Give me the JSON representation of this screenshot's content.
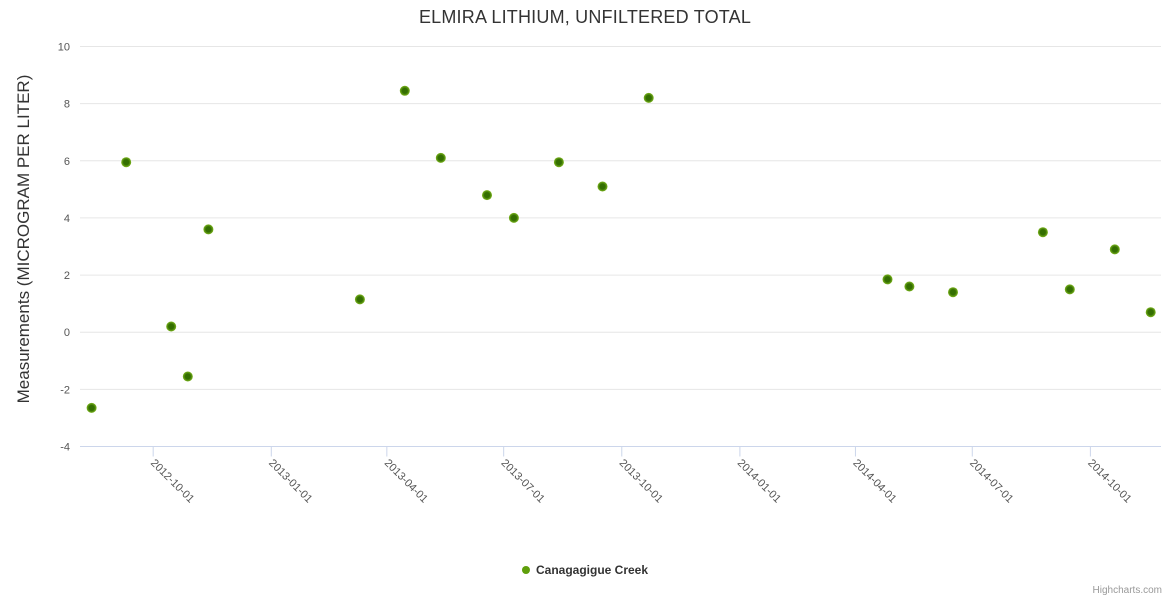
{
  "chart_data": {
    "type": "scatter",
    "title": "ELMIRA LITHIUM, UNFILTERED TOTAL",
    "xlabel": "",
    "ylabel": "Measurements (MICROGRAM PER LITER)",
    "x_type": "datetime",
    "x_range": [
      "2012-08-05",
      "2014-11-25"
    ],
    "ylim": [
      -4,
      10
    ],
    "yticks": [
      10,
      8,
      6,
      4,
      2,
      0,
      -2,
      -4
    ],
    "xticks": [
      "2012-10-01",
      "2013-01-01",
      "2013-04-01",
      "2013-07-01",
      "2013-10-01",
      "2014-01-01",
      "2014-04-01",
      "2014-07-01",
      "2014-10-01"
    ],
    "grid": true,
    "legend_position": "bottom-center",
    "series": [
      {
        "name": "Canagagigue Creek",
        "color": "#7cb51e",
        "marker_inner_color": "#346f01",
        "points": [
          {
            "x": "2012-08-14",
            "y": -2.65
          },
          {
            "x": "2012-09-10",
            "y": 5.95
          },
          {
            "x": "2012-10-15",
            "y": 0.2
          },
          {
            "x": "2012-10-28",
            "y": -1.55
          },
          {
            "x": "2012-11-13",
            "y": 3.6
          },
          {
            "x": "2013-03-11",
            "y": 1.15
          },
          {
            "x": "2013-04-15",
            "y": 8.45
          },
          {
            "x": "2013-05-13",
            "y": 6.1
          },
          {
            "x": "2013-06-18",
            "y": 4.8
          },
          {
            "x": "2013-07-09",
            "y": 4.0
          },
          {
            "x": "2013-08-13",
            "y": 5.95
          },
          {
            "x": "2013-09-16",
            "y": 5.1
          },
          {
            "x": "2013-10-22",
            "y": 8.2
          },
          {
            "x": "2014-04-26",
            "y": 1.85
          },
          {
            "x": "2014-05-13",
            "y": 1.6
          },
          {
            "x": "2014-06-16",
            "y": 1.4
          },
          {
            "x": "2014-08-25",
            "y": 3.5
          },
          {
            "x": "2014-09-15",
            "y": 1.5
          },
          {
            "x": "2014-10-20",
            "y": 2.9
          },
          {
            "x": "2014-11-17",
            "y": 0.7
          }
        ]
      }
    ]
  },
  "credits": "Highcharts.com",
  "colors": {
    "grid": "#e6e6e6",
    "axis": "#ccd6eb",
    "tick_label": "#555555",
    "title": "#333333",
    "credits": "#999999",
    "legend_dot": "#5f9f0b"
  }
}
